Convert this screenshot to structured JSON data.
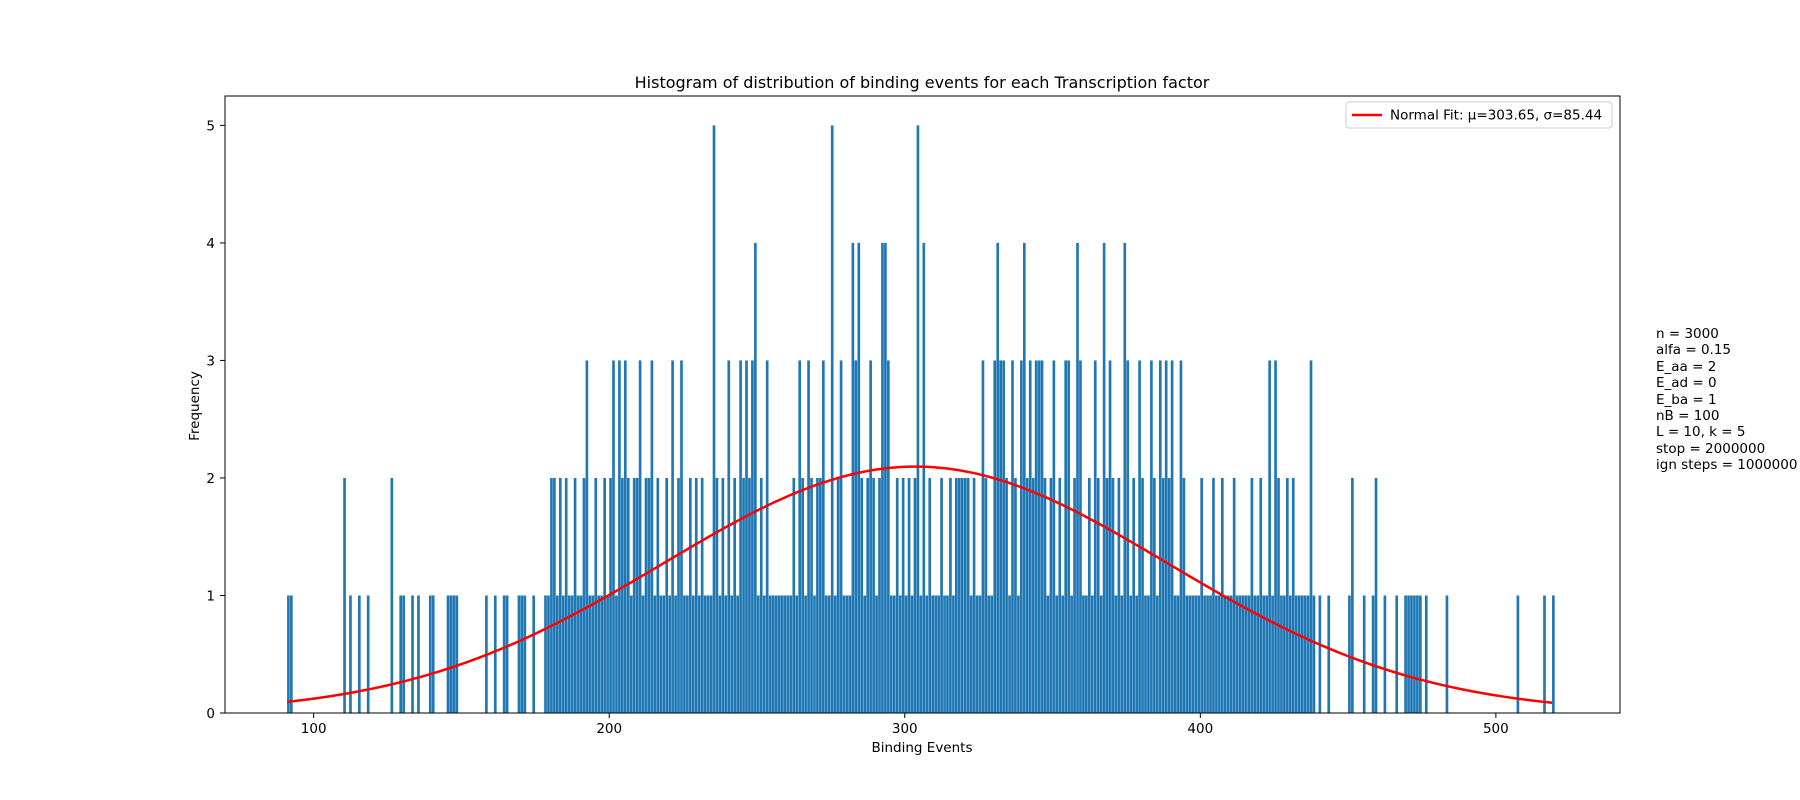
{
  "chart_data": {
    "type": "bar",
    "title": "Histogram of distribution of binding events for each Transcription factor",
    "xlabel": "Binding Events",
    "ylabel": "Frequency",
    "xlim": [
      70,
      542
    ],
    "ylim": [
      0,
      5.25
    ],
    "xticks": [
      100,
      200,
      300,
      400,
      500
    ],
    "yticks": [
      0,
      1,
      2,
      3,
      4,
      5
    ],
    "grid": false,
    "bar_color": "#1f77b4",
    "legend": {
      "placement": "top-right",
      "entries": [
        {
          "label": "Normal Fit: μ=303.65, σ=85.44",
          "color": "#ff0000"
        }
      ]
    },
    "bars": [
      [
        91,
        1
      ],
      [
        92,
        1
      ],
      [
        110,
        2
      ],
      [
        112,
        1
      ],
      [
        115,
        1
      ],
      [
        118,
        1
      ],
      [
        126,
        2
      ],
      [
        129,
        1
      ],
      [
        130,
        1
      ],
      [
        133,
        1
      ],
      [
        135,
        1
      ],
      [
        139,
        1
      ],
      [
        140,
        1
      ],
      [
        145,
        1
      ],
      [
        146,
        1
      ],
      [
        147,
        1
      ],
      [
        148,
        1
      ],
      [
        158,
        1
      ],
      [
        161,
        1
      ],
      [
        164,
        1
      ],
      [
        165,
        1
      ],
      [
        169,
        1
      ],
      [
        170,
        1
      ],
      [
        171,
        1
      ],
      [
        174,
        1
      ],
      [
        178,
        1
      ],
      [
        179,
        1
      ],
      [
        180,
        2
      ],
      [
        181,
        2
      ],
      [
        182,
        1
      ],
      [
        183,
        2
      ],
      [
        184,
        1
      ],
      [
        185,
        2
      ],
      [
        186,
        1
      ],
      [
        187,
        1
      ],
      [
        188,
        2
      ],
      [
        189,
        1
      ],
      [
        190,
        1
      ],
      [
        191,
        2
      ],
      [
        192,
        3
      ],
      [
        193,
        1
      ],
      [
        194,
        1
      ],
      [
        195,
        2
      ],
      [
        196,
        1
      ],
      [
        197,
        1
      ],
      [
        198,
        2
      ],
      [
        199,
        1
      ],
      [
        200,
        2
      ],
      [
        201,
        3
      ],
      [
        202,
        1
      ],
      [
        203,
        3
      ],
      [
        204,
        2
      ],
      [
        205,
        3
      ],
      [
        206,
        2
      ],
      [
        207,
        1
      ],
      [
        208,
        2
      ],
      [
        209,
        2
      ],
      [
        210,
        3
      ],
      [
        211,
        1
      ],
      [
        212,
        2
      ],
      [
        213,
        2
      ],
      [
        214,
        3
      ],
      [
        215,
        1
      ],
      [
        216,
        2
      ],
      [
        217,
        1
      ],
      [
        218,
        1
      ],
      [
        219,
        2
      ],
      [
        220,
        1
      ],
      [
        221,
        3
      ],
      [
        222,
        1
      ],
      [
        223,
        2
      ],
      [
        224,
        3
      ],
      [
        225,
        1
      ],
      [
        226,
        1
      ],
      [
        227,
        2
      ],
      [
        228,
        1
      ],
      [
        229,
        2
      ],
      [
        230,
        1
      ],
      [
        231,
        2
      ],
      [
        232,
        1
      ],
      [
        233,
        1
      ],
      [
        234,
        1
      ],
      [
        235,
        5
      ],
      [
        236,
        2
      ],
      [
        237,
        1
      ],
      [
        238,
        2
      ],
      [
        239,
        1
      ],
      [
        240,
        3
      ],
      [
        241,
        1
      ],
      [
        242,
        2
      ],
      [
        243,
        1
      ],
      [
        244,
        3
      ],
      [
        245,
        2
      ],
      [
        246,
        3
      ],
      [
        247,
        2
      ],
      [
        248,
        3
      ],
      [
        249,
        4
      ],
      [
        250,
        1
      ],
      [
        251,
        2
      ],
      [
        252,
        1
      ],
      [
        253,
        3
      ],
      [
        254,
        1
      ],
      [
        255,
        1
      ],
      [
        256,
        1
      ],
      [
        257,
        1
      ],
      [
        258,
        1
      ],
      [
        259,
        1
      ],
      [
        260,
        1
      ],
      [
        261,
        1
      ],
      [
        262,
        2
      ],
      [
        263,
        1
      ],
      [
        264,
        3
      ],
      [
        265,
        2
      ],
      [
        266,
        1
      ],
      [
        267,
        3
      ],
      [
        268,
        2
      ],
      [
        269,
        1
      ],
      [
        270,
        2
      ],
      [
        271,
        2
      ],
      [
        272,
        3
      ],
      [
        273,
        1
      ],
      [
        274,
        1
      ],
      [
        275,
        5
      ],
      [
        276,
        1
      ],
      [
        277,
        2
      ],
      [
        278,
        3
      ],
      [
        279,
        1
      ],
      [
        280,
        1
      ],
      [
        281,
        1
      ],
      [
        282,
        4
      ],
      [
        283,
        3
      ],
      [
        284,
        4
      ],
      [
        285,
        2
      ],
      [
        286,
        1
      ],
      [
        287,
        2
      ],
      [
        288,
        3
      ],
      [
        289,
        2
      ],
      [
        290,
        1
      ],
      [
        291,
        2
      ],
      [
        292,
        4
      ],
      [
        293,
        4
      ],
      [
        294,
        3
      ],
      [
        295,
        1
      ],
      [
        296,
        1
      ],
      [
        297,
        2
      ],
      [
        298,
        1
      ],
      [
        299,
        2
      ],
      [
        300,
        1
      ],
      [
        301,
        2
      ],
      [
        302,
        1
      ],
      [
        303,
        2
      ],
      [
        304,
        5
      ],
      [
        305,
        1
      ],
      [
        306,
        4
      ],
      [
        307,
        1
      ],
      [
        308,
        2
      ],
      [
        309,
        1
      ],
      [
        310,
        1
      ],
      [
        311,
        1
      ],
      [
        312,
        2
      ],
      [
        313,
        1
      ],
      [
        314,
        1
      ],
      [
        315,
        2
      ],
      [
        316,
        1
      ],
      [
        317,
        2
      ],
      [
        318,
        2
      ],
      [
        319,
        2
      ],
      [
        320,
        2
      ],
      [
        321,
        2
      ],
      [
        322,
        1
      ],
      [
        323,
        2
      ],
      [
        324,
        1
      ],
      [
        325,
        1
      ],
      [
        326,
        3
      ],
      [
        327,
        2
      ],
      [
        328,
        1
      ],
      [
        329,
        1
      ],
      [
        330,
        3
      ],
      [
        331,
        4
      ],
      [
        332,
        3
      ],
      [
        333,
        3
      ],
      [
        334,
        2
      ],
      [
        335,
        1
      ],
      [
        336,
        3
      ],
      [
        337,
        2
      ],
      [
        338,
        1
      ],
      [
        339,
        3
      ],
      [
        340,
        4
      ],
      [
        341,
        2
      ],
      [
        342,
        3
      ],
      [
        343,
        2
      ],
      [
        344,
        3
      ],
      [
        345,
        3
      ],
      [
        346,
        3
      ],
      [
        347,
        2
      ],
      [
        348,
        1
      ],
      [
        349,
        2
      ],
      [
        350,
        3
      ],
      [
        351,
        1
      ],
      [
        352,
        2
      ],
      [
        353,
        1
      ],
      [
        354,
        3
      ],
      [
        355,
        3
      ],
      [
        356,
        1
      ],
      [
        357,
        2
      ],
      [
        358,
        4
      ],
      [
        359,
        3
      ],
      [
        360,
        1
      ],
      [
        361,
        1
      ],
      [
        362,
        2
      ],
      [
        363,
        1
      ],
      [
        364,
        3
      ],
      [
        365,
        2
      ],
      [
        366,
        1
      ],
      [
        367,
        4
      ],
      [
        368,
        2
      ],
      [
        369,
        3
      ],
      [
        370,
        2
      ],
      [
        371,
        1
      ],
      [
        372,
        2
      ],
      [
        373,
        1
      ],
      [
        374,
        4
      ],
      [
        375,
        3
      ],
      [
        376,
        1
      ],
      [
        377,
        2
      ],
      [
        378,
        1
      ],
      [
        379,
        3
      ],
      [
        380,
        2
      ],
      [
        381,
        1
      ],
      [
        382,
        1
      ],
      [
        383,
        3
      ],
      [
        384,
        2
      ],
      [
        385,
        1
      ],
      [
        386,
        3
      ],
      [
        387,
        2
      ],
      [
        388,
        3
      ],
      [
        389,
        2
      ],
      [
        390,
        3
      ],
      [
        391,
        1
      ],
      [
        392,
        1
      ],
      [
        393,
        3
      ],
      [
        394,
        2
      ],
      [
        395,
        1
      ],
      [
        396,
        1
      ],
      [
        397,
        1
      ],
      [
        398,
        1
      ],
      [
        399,
        1
      ],
      [
        400,
        2
      ],
      [
        401,
        1
      ],
      [
        402,
        1
      ],
      [
        403,
        1
      ],
      [
        404,
        2
      ],
      [
        405,
        1
      ],
      [
        406,
        1
      ],
      [
        407,
        2
      ],
      [
        408,
        1
      ],
      [
        409,
        1
      ],
      [
        410,
        1
      ],
      [
        411,
        2
      ],
      [
        412,
        1
      ],
      [
        413,
        1
      ],
      [
        414,
        1
      ],
      [
        415,
        1
      ],
      [
        416,
        1
      ],
      [
        417,
        2
      ],
      [
        418,
        1
      ],
      [
        419,
        1
      ],
      [
        420,
        2
      ],
      [
        421,
        1
      ],
      [
        422,
        1
      ],
      [
        423,
        3
      ],
      [
        424,
        1
      ],
      [
        425,
        3
      ],
      [
        426,
        2
      ],
      [
        427,
        1
      ],
      [
        428,
        1
      ],
      [
        429,
        2
      ],
      [
        430,
        1
      ],
      [
        431,
        2
      ],
      [
        432,
        1
      ],
      [
        433,
        1
      ],
      [
        434,
        1
      ],
      [
        435,
        1
      ],
      [
        436,
        1
      ],
      [
        437,
        3
      ],
      [
        438,
        1
      ],
      [
        440,
        1
      ],
      [
        443,
        1
      ],
      [
        450,
        1
      ],
      [
        451,
        2
      ],
      [
        455,
        1
      ],
      [
        458,
        1
      ],
      [
        459,
        2
      ],
      [
        462,
        1
      ],
      [
        466,
        1
      ],
      [
        469,
        1
      ],
      [
        470,
        1
      ],
      [
        471,
        1
      ],
      [
        472,
        1
      ],
      [
        473,
        1
      ],
      [
        474,
        1
      ],
      [
        476,
        1
      ],
      [
        483,
        1
      ],
      [
        507,
        1
      ],
      [
        516,
        1
      ],
      [
        519,
        1
      ]
    ],
    "fit": {
      "type": "normal",
      "mu": 303.65,
      "sigma": 85.44,
      "scale": 449,
      "x_range": [
        91,
        519
      ],
      "color": "#ff0000"
    }
  },
  "annotation_lines": [
    "n = 3000",
    "alfa = 0.15",
    "E_aa = 2",
    "E_ad = 0",
    "E_ba = 1",
    "nB = 100",
    "L = 10, k = 5",
    "stop = 2000000",
    "ign steps = 1000000"
  ]
}
